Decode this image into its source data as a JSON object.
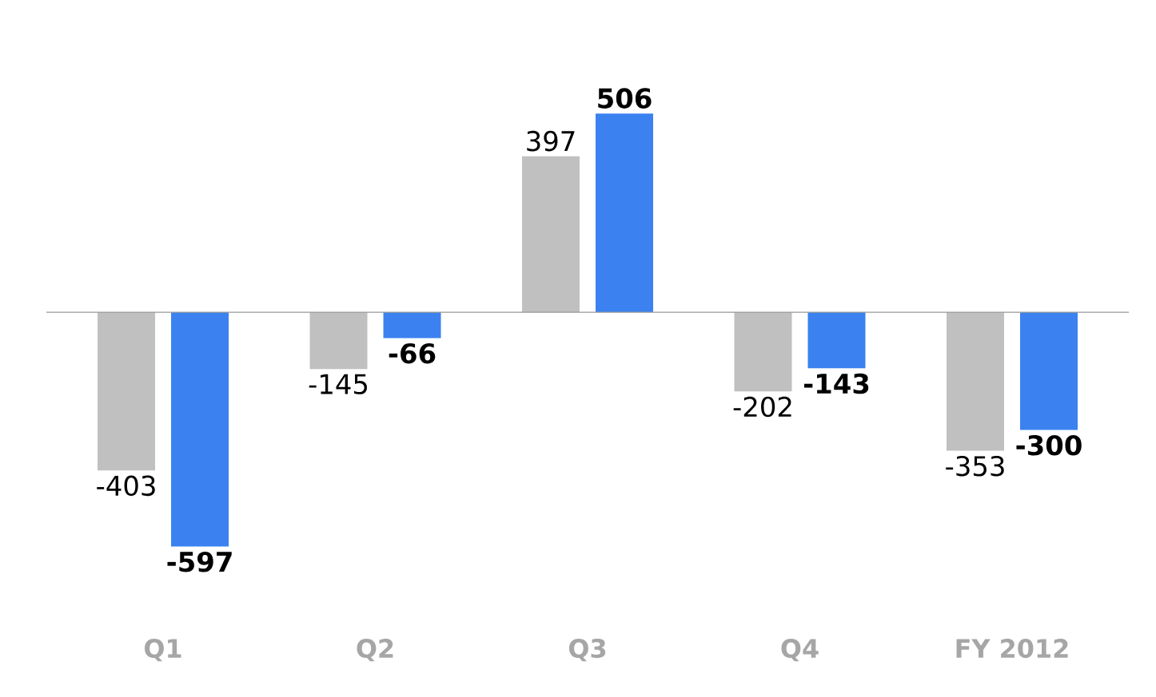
{
  "chart_data": {
    "type": "bar",
    "categories": [
      "Q1",
      "Q2",
      "Q3",
      "Q4",
      "FY 2012"
    ],
    "series": [
      {
        "color": "#c0c0c0",
        "values": [
          -403,
          -145,
          397,
          -202,
          -353
        ]
      },
      {
        "color": "#3b82f0",
        "values": [
          -597,
          -66,
          506,
          -143,
          -300
        ]
      }
    ],
    "data_labels": true
  }
}
